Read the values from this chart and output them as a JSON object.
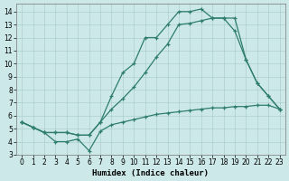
{
  "xlabel": "Humidex (Indice chaleur)",
  "background_color": "#cce8e8",
  "line_color": "#2e7d6e",
  "xlim": [
    -0.5,
    23.5
  ],
  "ylim": [
    3,
    14.6
  ],
  "xticks": [
    0,
    1,
    2,
    3,
    4,
    5,
    6,
    7,
    8,
    9,
    10,
    11,
    12,
    13,
    14,
    15,
    16,
    17,
    18,
    19,
    20,
    21,
    22,
    23
  ],
  "yticks": [
    3,
    4,
    5,
    6,
    7,
    8,
    9,
    10,
    11,
    12,
    13,
    14
  ],
  "s1_x": [
    0,
    1,
    2,
    3,
    4,
    5,
    6,
    7,
    8,
    9,
    10,
    11,
    12,
    13,
    14,
    15,
    16,
    17,
    18,
    19,
    20,
    21,
    22,
    23
  ],
  "s1_y": [
    5.5,
    5.1,
    4.7,
    4.0,
    4.0,
    4.2,
    3.3,
    4.8,
    5.3,
    5.5,
    5.7,
    5.9,
    6.1,
    6.2,
    6.3,
    6.4,
    6.5,
    6.6,
    6.6,
    6.7,
    6.7,
    6.8,
    6.8,
    6.5
  ],
  "s2_x": [
    0,
    1,
    2,
    3,
    4,
    5,
    6,
    7,
    8,
    9,
    10,
    11,
    12,
    13,
    14,
    15,
    16,
    17,
    18,
    19,
    20,
    21,
    22,
    23
  ],
  "s2_y": [
    5.5,
    5.1,
    4.7,
    4.7,
    4.7,
    4.5,
    4.5,
    5.5,
    6.5,
    7.3,
    8.2,
    9.3,
    10.5,
    11.5,
    13.0,
    13.1,
    13.3,
    13.5,
    13.5,
    13.5,
    10.3,
    8.5,
    7.5,
    6.5
  ],
  "s3_x": [
    0,
    1,
    2,
    3,
    4,
    5,
    6,
    7,
    8,
    9,
    10,
    11,
    12,
    13,
    14,
    15,
    16,
    17,
    18,
    19,
    20,
    21,
    22,
    23
  ],
  "s3_y": [
    5.5,
    5.1,
    4.7,
    4.7,
    4.7,
    4.5,
    4.5,
    5.5,
    7.5,
    9.3,
    10.0,
    12.0,
    12.0,
    13.0,
    14.0,
    14.0,
    14.2,
    13.5,
    13.5,
    12.5,
    10.3,
    8.5,
    7.5,
    6.5
  ]
}
